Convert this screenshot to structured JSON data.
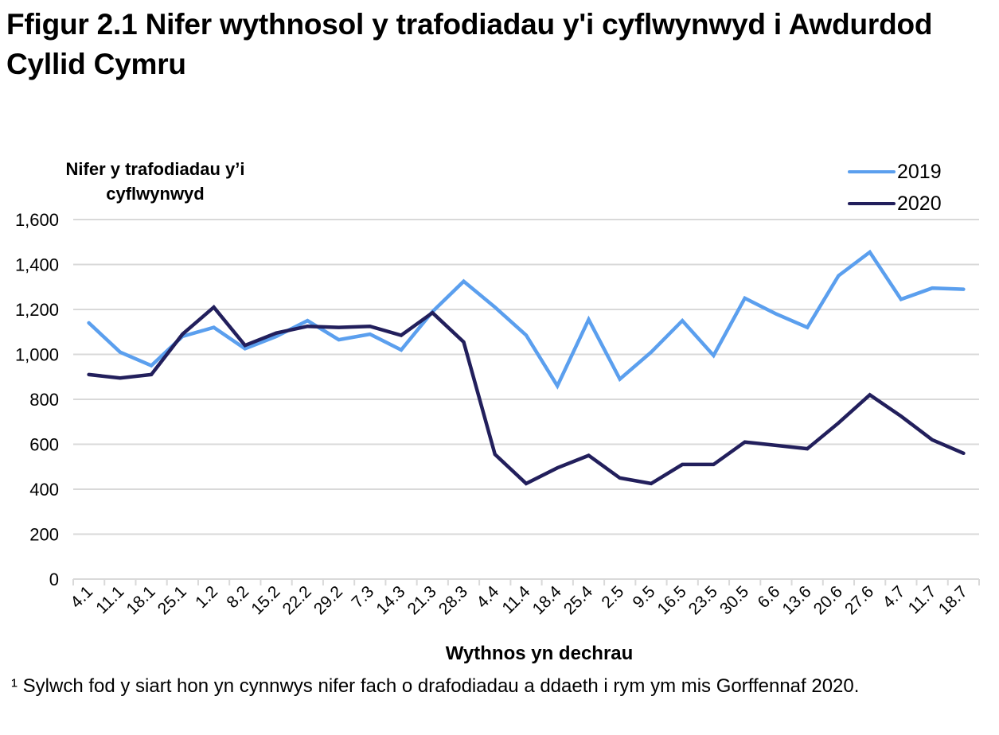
{
  "title": "Ffigur 2.1  Nifer wythnosol y trafodiadau y'i cyflwynwyd i Awdurdod Cyllid Cymru",
  "footnote": "¹ Sylwch fod y siart hon yn cynnwys nifer fach o drafodiadau  a ddaeth i rym ym mis Gorffennaf  2020.",
  "legend": [
    {
      "label": "2019",
      "color": "#5B9FEE"
    },
    {
      "label": "2020",
      "color": "#221F5C"
    }
  ],
  "chart_data": {
    "type": "line",
    "title": "Ffigur 2.1  Nifer wythnosol y trafodiadau y'i cyflwynwyd i Awdurdod Cyllid Cymru",
    "xlabel": "Wythnos yn dechrau",
    "ylabel": "Nifer y trafodiadau y’i cyflwynwyd",
    "ylim": [
      0,
      1600
    ],
    "yticks": [
      0,
      200,
      400,
      600,
      800,
      1000,
      1200,
      1400,
      1600
    ],
    "ytick_labels": [
      "0",
      "200",
      "400",
      "600",
      "800",
      "1,000",
      "1,200",
      "1,400",
      "1,600"
    ],
    "grid": true,
    "legend_position": "top-right",
    "categories": [
      "4.1",
      "11.1",
      "18.1",
      "25.1",
      "1.2",
      "8.2",
      "15.2",
      "22.2",
      "29.2",
      "7.3",
      "14.3",
      "21.3",
      "28.3",
      "4.4",
      "11.4",
      "18.4",
      "25.4",
      "2.5",
      "9.5",
      "16.5",
      "23.5",
      "30.5",
      "6.6",
      "13.6",
      "20.6",
      "27.6",
      "4.7",
      "11.7",
      "18.7"
    ],
    "series": [
      {
        "name": "2019",
        "color": "#5B9FEE",
        "values": [
          1140,
          1010,
          950,
          1080,
          1120,
          1025,
          1080,
          1150,
          1065,
          1090,
          1020,
          1190,
          1325,
          1210,
          1085,
          860,
          1155,
          890,
          1010,
          1150,
          995,
          1250,
          1180,
          1120,
          1350,
          1455,
          1245,
          1295,
          1290
        ]
      },
      {
        "name": "2020",
        "color": "#221F5C",
        "values": [
          910,
          895,
          910,
          1090,
          1210,
          1040,
          1095,
          1125,
          1120,
          1125,
          1085,
          1185,
          1055,
          555,
          425,
          495,
          550,
          450,
          425,
          510,
          510,
          610,
          595,
          580,
          695,
          820,
          725,
          620,
          560
        ]
      }
    ]
  }
}
